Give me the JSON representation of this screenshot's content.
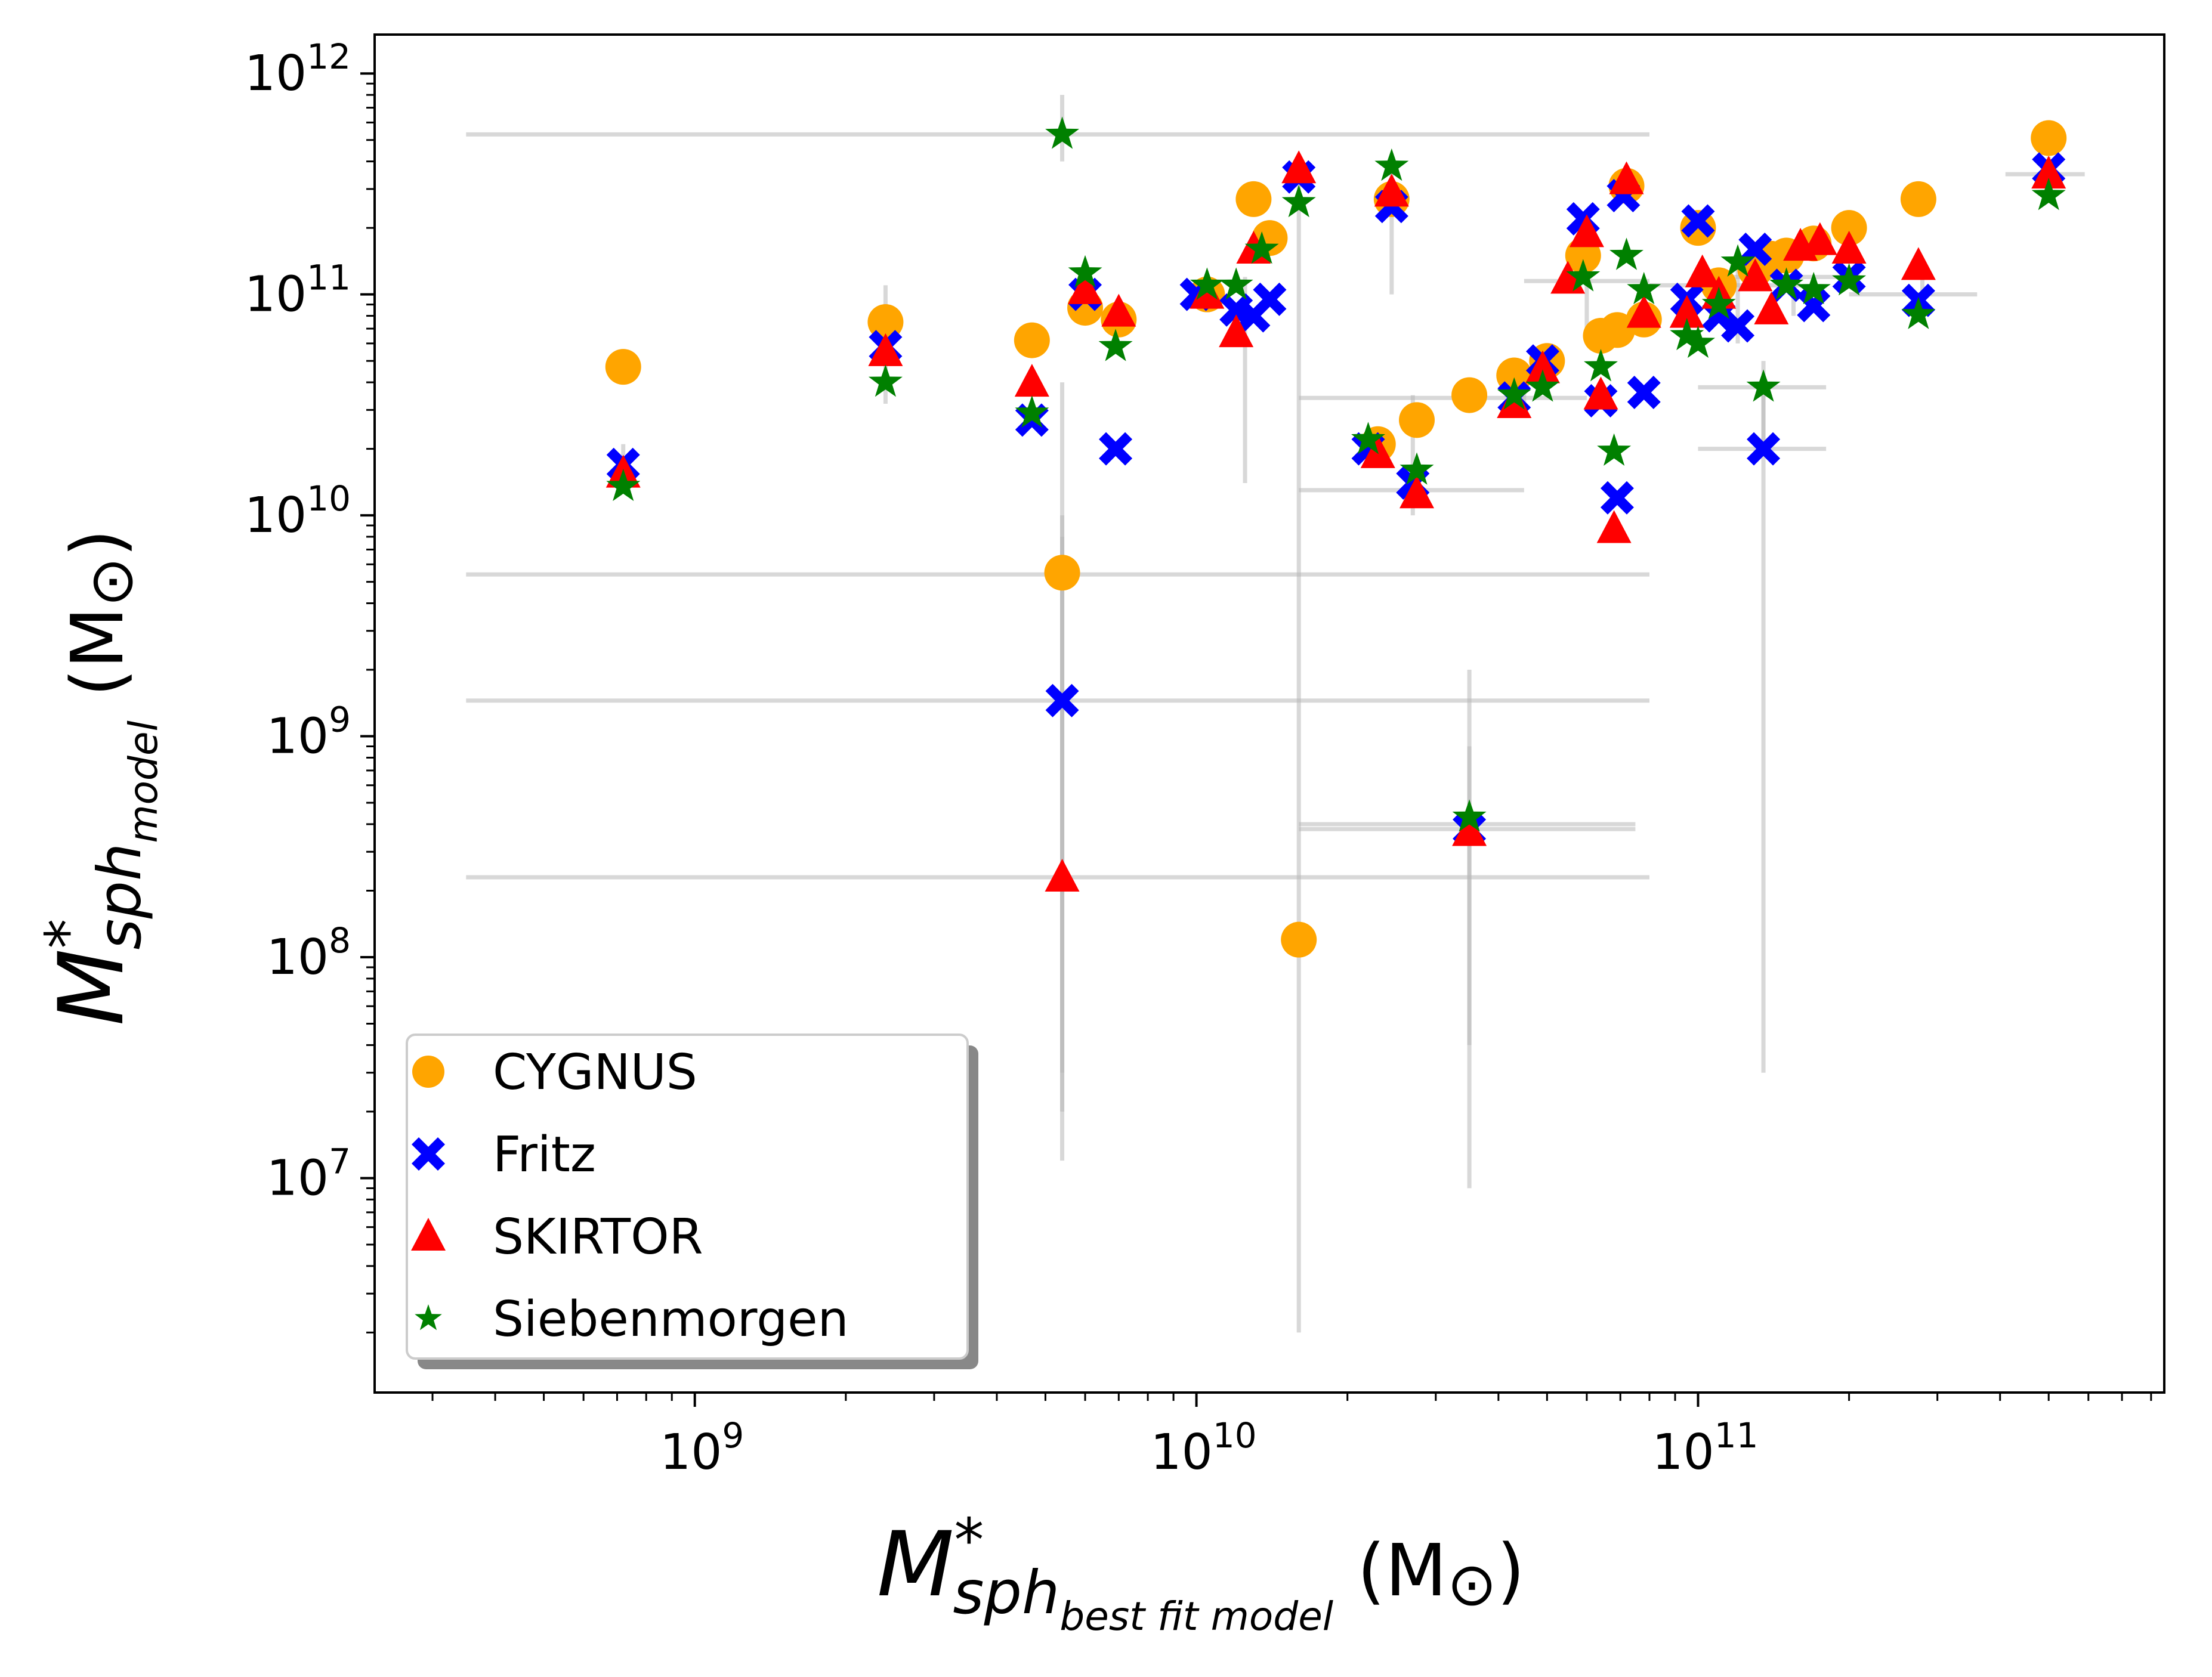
{
  "chart_data": {
    "type": "scatter",
    "xscale": "log",
    "yscale": "log",
    "xlim": [
      230000000.0,
      850000000000.0
    ],
    "ylim": [
      1070000.0,
      1500000000000.0
    ],
    "grid": false,
    "legend_position": "lower-left",
    "xlabel": {
      "base": "M",
      "sup": "*",
      "sub_main": "sph",
      "sub_sub": "best fit model",
      "unit": "(M",
      "unit_sub": "⊙",
      "unit_close": ")"
    },
    "ylabel": {
      "base": "M",
      "sup": "*",
      "sub_main": "sph",
      "sub_sub": "model",
      "unit": "(M",
      "unit_sub": "⊙",
      "unit_close": ")"
    },
    "x_ticks": [
      {
        "base": "10",
        "exp": "9",
        "value": 1000000000.0
      },
      {
        "base": "10",
        "exp": "10",
        "value": 10000000000.0
      },
      {
        "base": "10",
        "exp": "11",
        "value": 100000000000.0
      }
    ],
    "y_ticks": [
      {
        "base": "10",
        "exp": "7",
        "value": 10000000.0
      },
      {
        "base": "10",
        "exp": "8",
        "value": 100000000.0
      },
      {
        "base": "10",
        "exp": "9",
        "value": 1000000000.0
      },
      {
        "base": "10",
        "exp": "10",
        "value": 10000000000.0
      },
      {
        "base": "10",
        "exp": "11",
        "value": 100000000000.0
      },
      {
        "base": "10",
        "exp": "12",
        "value": 1000000000000.0
      }
    ],
    "errorbars": [
      {
        "x": 5400000000.0,
        "y": 5400000000.0,
        "xerr": [
          350000000.0,
          80000000000.0
        ],
        "yerr": [
          12000000.0,
          40000000000.0
        ]
      },
      {
        "x": 5400000000.0,
        "y": 1450000000.0,
        "xerr": [
          350000000.0,
          80000000000.0
        ],
        "yerr": [
          20000000.0,
          10000000000.0
        ]
      },
      {
        "x": 5400000000.0,
        "y": 230000000.0,
        "xerr": [
          350000000.0,
          80000000000.0
        ],
        "yerr": [
          30000000.0,
          8000000000.0
        ]
      },
      {
        "x": 5400000000.0,
        "y": 530000000000.0,
        "xerr": [
          350000000.0,
          80000000000.0
        ],
        "yerr": [
          400000000000.0,
          800000000000.0
        ]
      },
      {
        "x": 16000000000.0,
        "y": 120000000.0,
        "xerr": [
          16000000000.0,
          16000000000.0
        ],
        "yerr": [
          2000000.0,
          350000000000.0
        ]
      },
      {
        "x": 35000000000.0,
        "y": 400000000.0,
        "xerr": [
          16000000000.0,
          75000000000.0
        ],
        "yerr": [
          9000000.0,
          2000000000.0
        ]
      },
      {
        "x": 35000000000.0,
        "y": 380000000.0,
        "xerr": [
          16000000000.0,
          75000000000.0
        ],
        "yerr": [
          40000000.0,
          900000000.0
        ]
      },
      {
        "x": 27000000000.0,
        "y": 13000000000.0,
        "xerr": [
          16000000000.0,
          45000000000.0
        ],
        "yerr": [
          10000000000.0,
          35000000000.0
        ]
      },
      {
        "x": 135000000000.0,
        "y": 20000000000.0,
        "xerr": [
          100000000000.0,
          180000000000.0
        ],
        "yerr": [
          30000000.0,
          35000000000.0
        ]
      },
      {
        "x": 135000000000.0,
        "y": 38000000000.0,
        "xerr": [
          100000000000.0,
          180000000000.0
        ],
        "yerr": [
          20000000000.0,
          50000000000.0
        ]
      },
      {
        "x": 2400000000.0,
        "y": 55000000000.0,
        "xerr": [
          2400000000.0,
          2400000000.0
        ],
        "yerr": [
          32000000000.0,
          110000000000.0
        ]
      },
      {
        "x": 720000000.0,
        "y": 16000000000.0,
        "xerr": [
          720000000.0,
          720000000.0
        ],
        "yerr": [
          13000000000.0,
          21000000000.0
        ]
      },
      {
        "x": 12500000000.0,
        "y": 70000000000.0,
        "xerr": [
          12500000000.0,
          12500000000.0
        ],
        "yerr": [
          14000000000.0,
          120000000000.0
        ]
      },
      {
        "x": 24500000000.0,
        "y": 260000000000.0,
        "xerr": [
          24500000000.0,
          24500000000.0
        ],
        "yerr": [
          100000000000.0,
          380000000000.0
        ]
      },
      {
        "x": 45000000000.0,
        "y": 34000000000.0,
        "xerr": [
          16000000000.0,
          60000000000.0
        ],
        "yerr": [
          28000000000.0,
          39000000000.0
        ]
      },
      {
        "x": 60000000000.0,
        "y": 115000000000.0,
        "xerr": [
          45000000000.0,
          80000000000.0
        ],
        "yerr": [
          60000000000.0,
          200000000000.0
        ]
      },
      {
        "x": 120000000000.0,
        "y": 110000000000.0,
        "xerr": [
          80000000000.0,
          160000000000.0
        ],
        "yerr": [
          60000000000.0,
          160000000000.0
        ]
      },
      {
        "x": 155000000000.0,
        "y": 120000000000.0,
        "xerr": [
          110000000000.0,
          210000000000.0
        ],
        "yerr": [
          80000000000.0,
          160000000000.0
        ]
      },
      {
        "x": 280000000000.0,
        "y": 100000000000.0,
        "xerr": [
          200000000000.0,
          360000000000.0
        ],
        "yerr": [
          80000000000.0,
          130000000000.0
        ]
      },
      {
        "x": 500000000000.0,
        "y": 350000000000.0,
        "xerr": [
          410000000000.0,
          590000000000.0
        ],
        "yerr": [
          280000000000.0,
          420000000000.0
        ]
      }
    ],
    "series": [
      {
        "name": "CYGNUS",
        "marker": "circle",
        "color": "#FFA500",
        "points": [
          [
            720000000.0,
            47000000000.0
          ],
          [
            2400000000.0,
            75000000000.0
          ],
          [
            4700000000.0,
            62000000000.0
          ],
          [
            5400000000.0,
            5500000000.0
          ],
          [
            6000000000.0,
            87000000000.0
          ],
          [
            7000000000.0,
            77000000000.0
          ],
          [
            10500000000.0,
            100000000000.0
          ],
          [
            13000000000.0,
            270000000000.0
          ],
          [
            14000000000.0,
            180000000000.0
          ],
          [
            16000000000.0,
            120000000.0
          ],
          [
            23000000000.0,
            21000000000.0
          ],
          [
            24500000000.0,
            270000000000.0
          ],
          [
            27500000000.0,
            27000000000.0
          ],
          [
            35000000000.0,
            35000000000.0
          ],
          [
            43000000000.0,
            43000000000.0
          ],
          [
            50000000000.0,
            50000000000.0
          ],
          [
            59000000000.0,
            150000000000.0
          ],
          [
            64000000000.0,
            65000000000.0
          ],
          [
            69000000000.0,
            69000000000.0
          ],
          [
            72000000000.0,
            310000000000.0
          ],
          [
            78000000000.0,
            77000000000.0
          ],
          [
            100000000000.0,
            200000000000.0
          ],
          [
            110000000000.0,
            110000000000.0
          ],
          [
            130000000000.0,
            130000000000.0
          ],
          [
            140000000000.0,
            145000000000.0
          ],
          [
            150000000000.0,
            150000000000.0
          ],
          [
            170000000000.0,
            170000000000.0
          ],
          [
            200000000000.0,
            200000000000.0
          ],
          [
            275000000000.0,
            270000000000.0
          ],
          [
            500000000000.0,
            510000000000.0
          ]
        ]
      },
      {
        "name": "Fritz",
        "marker": "x",
        "color": "#0000FF",
        "points": [
          [
            720000000.0,
            17000000000.0
          ],
          [
            2400000000.0,
            58000000000.0
          ],
          [
            4700000000.0,
            27000000000.0
          ],
          [
            5400000000.0,
            1450000000.0
          ],
          [
            6000000000.0,
            100000000000.0
          ],
          [
            6900000000.0,
            20000000000.0
          ],
          [
            10000000000.0,
            100000000000.0
          ],
          [
            12000000000.0,
            85000000000.0
          ],
          [
            13000000000.0,
            80000000000.0
          ],
          [
            14000000000.0,
            95000000000.0
          ],
          [
            16000000000.0,
            340000000000.0
          ],
          [
            22000000000.0,
            20000000000.0
          ],
          [
            24500000000.0,
            250000000000.0
          ],
          [
            27000000000.0,
            14000000000.0
          ],
          [
            35000000000.0,
            380000000.0
          ],
          [
            43000000000.0,
            34000000000.0
          ],
          [
            49000000000.0,
            50000000000.0
          ],
          [
            59000000000.0,
            220000000000.0
          ],
          [
            64000000000.0,
            33000000000.0
          ],
          [
            69000000000.0,
            12000000000.0
          ],
          [
            71000000000.0,
            280000000000.0
          ],
          [
            78000000000.0,
            36000000000.0
          ],
          [
            95000000000.0,
            95000000000.0
          ],
          [
            100000000000.0,
            215000000000.0
          ],
          [
            110000000000.0,
            80000000000.0
          ],
          [
            120000000000.0,
            72000000000.0
          ],
          [
            130000000000.0,
            160000000000.0
          ],
          [
            135000000000.0,
            20000000000.0
          ],
          [
            150000000000.0,
            110000000000.0
          ],
          [
            170000000000.0,
            89000000000.0
          ],
          [
            200000000000.0,
            120000000000.0
          ],
          [
            275000000000.0,
            94000000000.0
          ],
          [
            500000000000.0,
            370000000000.0
          ]
        ]
      },
      {
        "name": "SKIRTOR",
        "marker": "triangle",
        "color": "#FF0000",
        "points": [
          [
            720000000.0,
            15500000000.0
          ],
          [
            2400000000.0,
            55000000000.0
          ],
          [
            4700000000.0,
            40000000000.0
          ],
          [
            5400000000.0,
            230000000.0
          ],
          [
            6000000000.0,
            105000000000.0
          ],
          [
            7000000000.0,
            83000000000.0
          ],
          [
            10500000000.0,
            100000000000.0
          ],
          [
            12000000000.0,
            67000000000.0
          ],
          [
            13000000000.0,
            160000000000.0
          ],
          [
            16000000000.0,
            370000000000.0
          ],
          [
            23000000000.0,
            19000000000.0
          ],
          [
            24500000000.0,
            290000000000.0
          ],
          [
            27500000000.0,
            12500000000.0
          ],
          [
            35000000000.0,
            370000000.0
          ],
          [
            43000000000.0,
            32000000000.0
          ],
          [
            49000000000.0,
            46000000000.0
          ],
          [
            55000000000.0,
            117000000000.0
          ],
          [
            60000000000.0,
            190000000000.0
          ],
          [
            64000000000.0,
            35000000000.0
          ],
          [
            68000000000.0,
            8700000000.0
          ],
          [
            72000000000.0,
            330000000000.0
          ],
          [
            78000000000.0,
            82000000000.0
          ],
          [
            95000000000.0,
            82000000000.0
          ],
          [
            102000000000.0,
            125000000000.0
          ],
          [
            110000000000.0,
            100000000000.0
          ],
          [
            130000000000.0,
            120000000000.0
          ],
          [
            140000000000.0,
            85000000000.0
          ],
          [
            160000000000.0,
            165000000000.0
          ],
          [
            175000000000.0,
            175000000000.0
          ],
          [
            200000000000.0,
            160000000000.0
          ],
          [
            275000000000.0,
            135000000000.0
          ],
          [
            500000000000.0,
            350000000000.0
          ]
        ]
      },
      {
        "name": "Siebenmorgen",
        "marker": "star",
        "color": "#008000",
        "points": [
          [
            720000000.0,
            13500000000.0
          ],
          [
            2400000000.0,
            40000000000.0
          ],
          [
            4700000000.0,
            29000000000.0
          ],
          [
            5400000000.0,
            530000000000.0
          ],
          [
            6000000000.0,
            125000000000.0
          ],
          [
            6900000000.0,
            58000000000.0
          ],
          [
            10500000000.0,
            110000000000.0
          ],
          [
            12000000000.0,
            110000000000.0
          ],
          [
            13500000000.0,
            160000000000.0
          ],
          [
            16000000000.0,
            260000000000.0
          ],
          [
            22000000000.0,
            22000000000.0
          ],
          [
            24500000000.0,
            380000000000.0
          ],
          [
            27500000000.0,
            16000000000.0
          ],
          [
            35000000000.0,
            430000000.0
          ],
          [
            43000000000.0,
            35000000000.0
          ],
          [
            49000000000.0,
            38000000000.0
          ],
          [
            59000000000.0,
            120000000000.0
          ],
          [
            64000000000.0,
            47000000000.0
          ],
          [
            68000000000.0,
            19500000000.0
          ],
          [
            72000000000.0,
            150000000000.0
          ],
          [
            78000000000.0,
            105000000000.0
          ],
          [
            95000000000.0,
            65000000000.0
          ],
          [
            100000000000.0,
            60000000000.0
          ],
          [
            110000000000.0,
            90000000000.0
          ],
          [
            120000000000.0,
            140000000000.0
          ],
          [
            135000000000.0,
            38000000000.0
          ],
          [
            150000000000.0,
            110000000000.0
          ],
          [
            170000000000.0,
            105000000000.0
          ],
          [
            200000000000.0,
            115000000000.0
          ],
          [
            275000000000.0,
            81000000000.0
          ],
          [
            500000000000.0,
            280000000000.0
          ]
        ]
      }
    ]
  }
}
